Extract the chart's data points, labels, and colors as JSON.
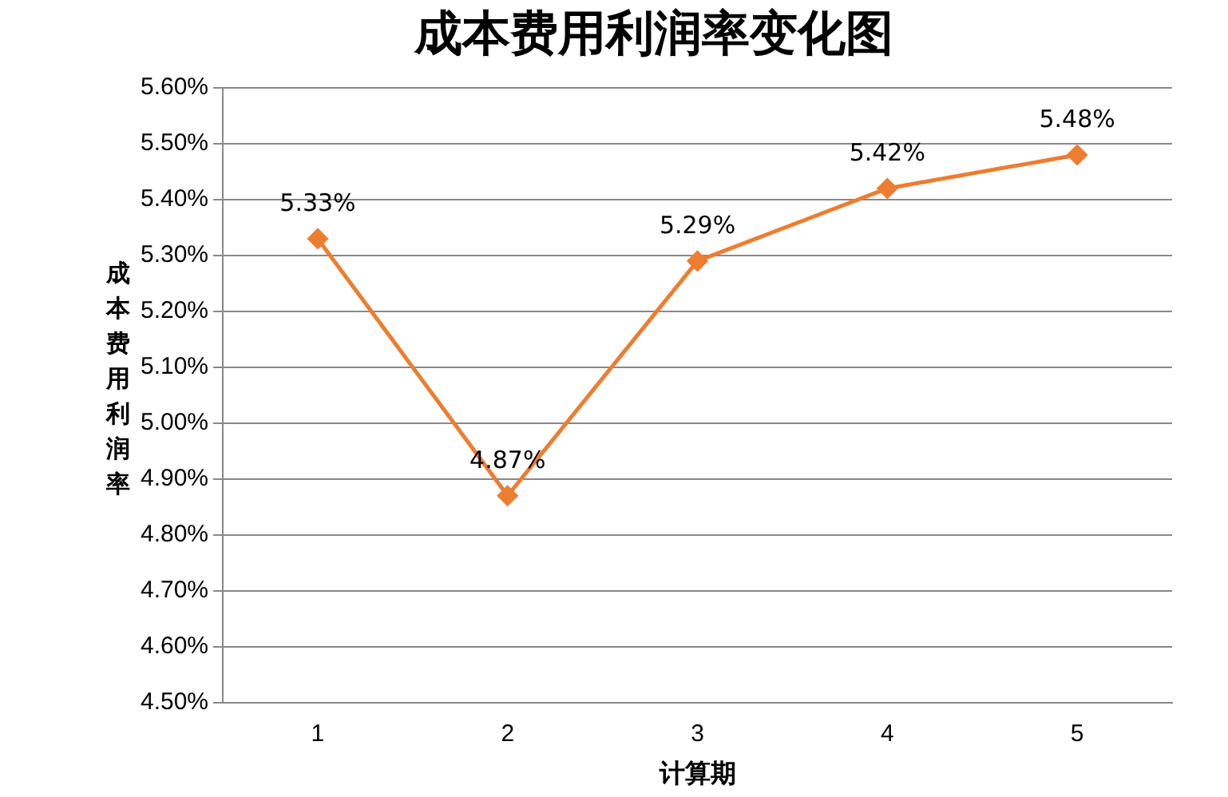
{
  "chart_data": {
    "type": "line",
    "title": "成本费用利润率变化图",
    "xlabel": "计算期",
    "ylabel": "成本费用利润率",
    "categories": [
      "1",
      "2",
      "3",
      "4",
      "5"
    ],
    "series": [
      {
        "color": "#ed7d31",
        "values": [
          5.33,
          4.87,
          5.29,
          5.42,
          5.48
        ],
        "value_labels": [
          "5.33%",
          "4.87%",
          "5.29%",
          "5.42%",
          "5.48%"
        ]
      }
    ],
    "ylim": [
      4.5,
      5.6
    ],
    "yticks": [
      {
        "value": 4.5,
        "label": "4.50%"
      },
      {
        "value": 4.6,
        "label": "4.60%"
      },
      {
        "value": 4.7,
        "label": "4.70%"
      },
      {
        "value": 4.8,
        "label": "4.80%"
      },
      {
        "value": 4.9,
        "label": "4.90%"
      },
      {
        "value": 5.0,
        "label": "5.00%"
      },
      {
        "value": 5.1,
        "label": "5.10%"
      },
      {
        "value": 5.2,
        "label": "5.20%"
      },
      {
        "value": 5.3,
        "label": "5.30%"
      },
      {
        "value": 5.4,
        "label": "5.40%"
      },
      {
        "value": 5.5,
        "label": "5.50%"
      },
      {
        "value": 5.6,
        "label": "5.60%"
      }
    ],
    "grid": "y",
    "marker": "diamond",
    "line_style": "solid"
  }
}
